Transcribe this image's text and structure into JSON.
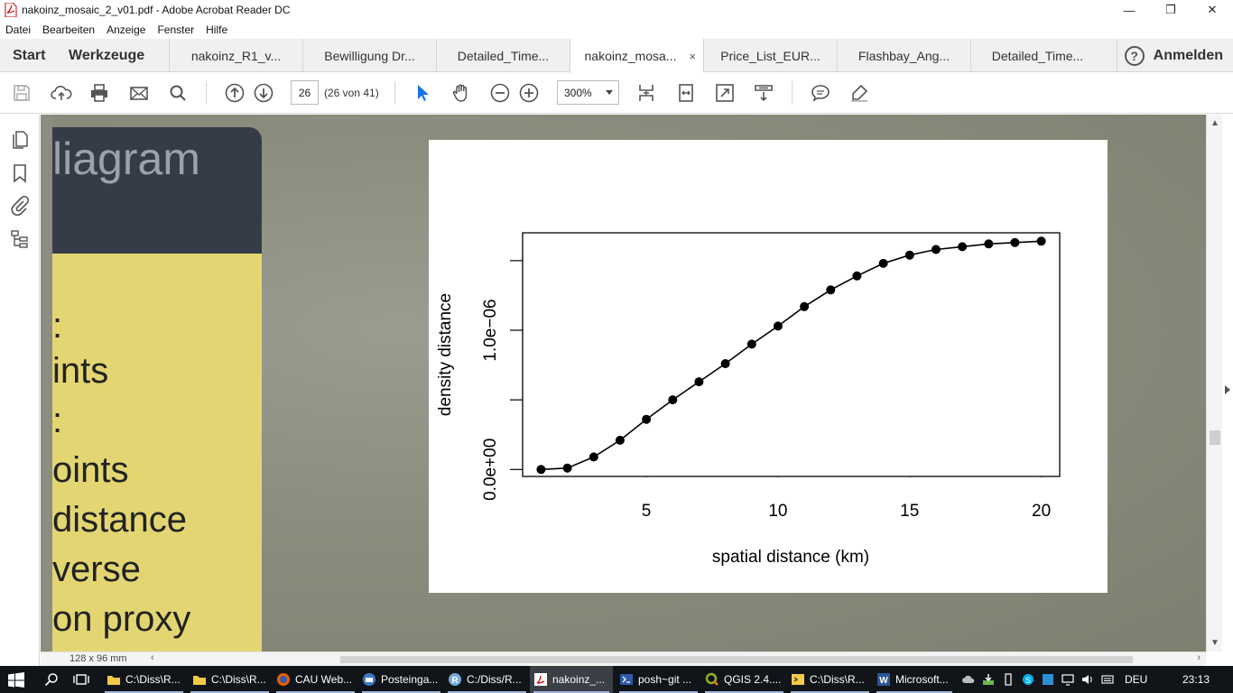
{
  "window": {
    "title": "nakoinz_mosaic_2_v01.pdf - Adobe Acrobat Reader DC",
    "minimize": "—",
    "maximize": "❐",
    "close": "✕"
  },
  "menu": [
    "Datei",
    "Bearbeiten",
    "Anzeige",
    "Fenster",
    "Hilfe"
  ],
  "tabs": {
    "start": "Start",
    "tools": "Werkzeuge",
    "documents": [
      {
        "label": "nakoinz_R1_v..."
      },
      {
        "label": "Bewilligung Dr..."
      },
      {
        "label": "Detailed_Time..."
      },
      {
        "label": "nakoinz_mosa...",
        "active": true
      },
      {
        "label": "Price_List_EUR..."
      },
      {
        "label": "Flashbay_Ang..."
      },
      {
        "label": "Detailed_Time..."
      }
    ],
    "close_glyph": "×",
    "help": "?",
    "signin": "Anmelden"
  },
  "toolbar": {
    "page_value": "26",
    "page_count": "(26 von 41)",
    "zoom": "300%"
  },
  "slide": {
    "header": "liagram",
    "lines": [
      ":",
      "ints",
      ":",
      "oints",
      "distance",
      "verse",
      "on proxy"
    ]
  },
  "chart_data": {
    "type": "line",
    "xlabel": "spatial distance (km)",
    "ylabel": "density distance",
    "xlim": [
      0.3,
      20.7
    ],
    "ylim": [
      -0.05,
      1.7
    ],
    "x_ticks": [
      5,
      10,
      15,
      20
    ],
    "x_tick_labels": [
      "5",
      "10",
      "15",
      "20"
    ],
    "y_ticks": [
      0,
      1
    ],
    "y_tick_labels": [
      "0.0e+00",
      "1.0e−06"
    ],
    "y_minor_ticks": [
      0.5,
      1.5
    ],
    "y_unit": "1e-06",
    "series": [
      {
        "x": [
          1,
          2,
          3,
          4,
          5,
          6,
          7,
          8,
          9,
          10,
          11,
          12,
          13,
          14,
          15,
          16,
          17,
          18,
          19,
          20
        ],
        "values": [
          0.0,
          0.01,
          0.09,
          0.21,
          0.36,
          0.5,
          0.63,
          0.76,
          0.9,
          1.03,
          1.17,
          1.29,
          1.39,
          1.48,
          1.54,
          1.58,
          1.6,
          1.62,
          1.63,
          1.64
        ]
      }
    ],
    "grid": false,
    "legend": "none"
  },
  "status": {
    "page_size": "128 x 96 mm"
  },
  "taskbar": {
    "items": [
      {
        "label": "C:\\Diss\\R..."
      },
      {
        "label": "C:\\Diss\\R..."
      },
      {
        "label": "CAU Web..."
      },
      {
        "label": "Posteinga..."
      },
      {
        "label": "C:/Diss/R..."
      },
      {
        "label": "nakoinz_...",
        "active": true
      },
      {
        "label": "posh~git ..."
      },
      {
        "label": "QGIS 2.4...."
      },
      {
        "label": "C:\\Diss\\R..."
      },
      {
        "label": "Microsoft..."
      }
    ],
    "language": "DEU",
    "time": "23:13"
  },
  "colors": {
    "accent": "#1473e6",
    "slide_header": "#353c48",
    "slide_body": "#e3d672",
    "doc_background": "#8b8d80"
  }
}
